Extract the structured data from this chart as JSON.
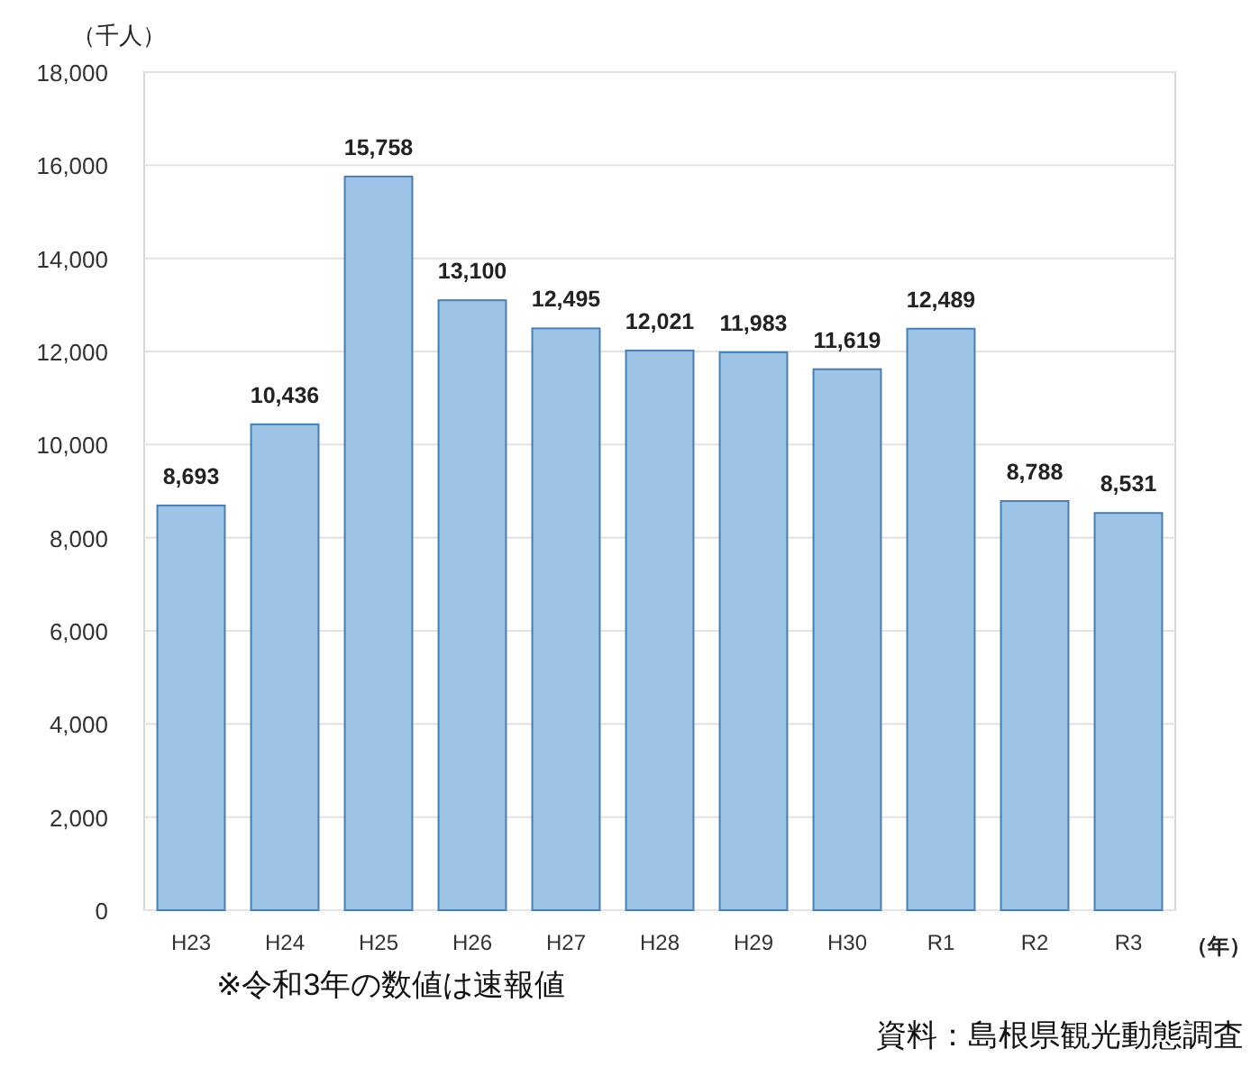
{
  "chart_data": {
    "type": "bar",
    "ylabel": "（千人）",
    "xlabel": "（年）",
    "categories": [
      "H23",
      "H24",
      "H25",
      "H26",
      "H27",
      "H28",
      "H29",
      "H30",
      "R1",
      "R2",
      "R3"
    ],
    "values": [
      8693,
      10436,
      15758,
      13100,
      12495,
      12021,
      11983,
      11619,
      12489,
      8788,
      8531
    ],
    "value_labels": [
      "8,693",
      "10,436",
      "15,758",
      "13,100",
      "12,495",
      "12,021",
      "11,983",
      "11,619",
      "12,489",
      "8,788",
      "8,531"
    ],
    "color": "#9dc3e6",
    "ylim": [
      0,
      18000
    ],
    "yticks": [
      {
        "value": 0,
        "label": "0"
      },
      {
        "value": 2000,
        "label": "2,000"
      },
      {
        "value": 4000,
        "label": "4,000"
      },
      {
        "value": 6000,
        "label": "6,000"
      },
      {
        "value": 8000,
        "label": "8,000"
      },
      {
        "value": 10000,
        "label": "10,000"
      },
      {
        "value": 12000,
        "label": "12,000"
      },
      {
        "value": 14000,
        "label": "14,000"
      },
      {
        "value": 16000,
        "label": "16,000"
      },
      {
        "value": 18000,
        "label": "18,000"
      }
    ],
    "grid": "y",
    "annotations": [
      "※令和3年の数値は速報値",
      "資料：島根県観光動態調査"
    ]
  }
}
